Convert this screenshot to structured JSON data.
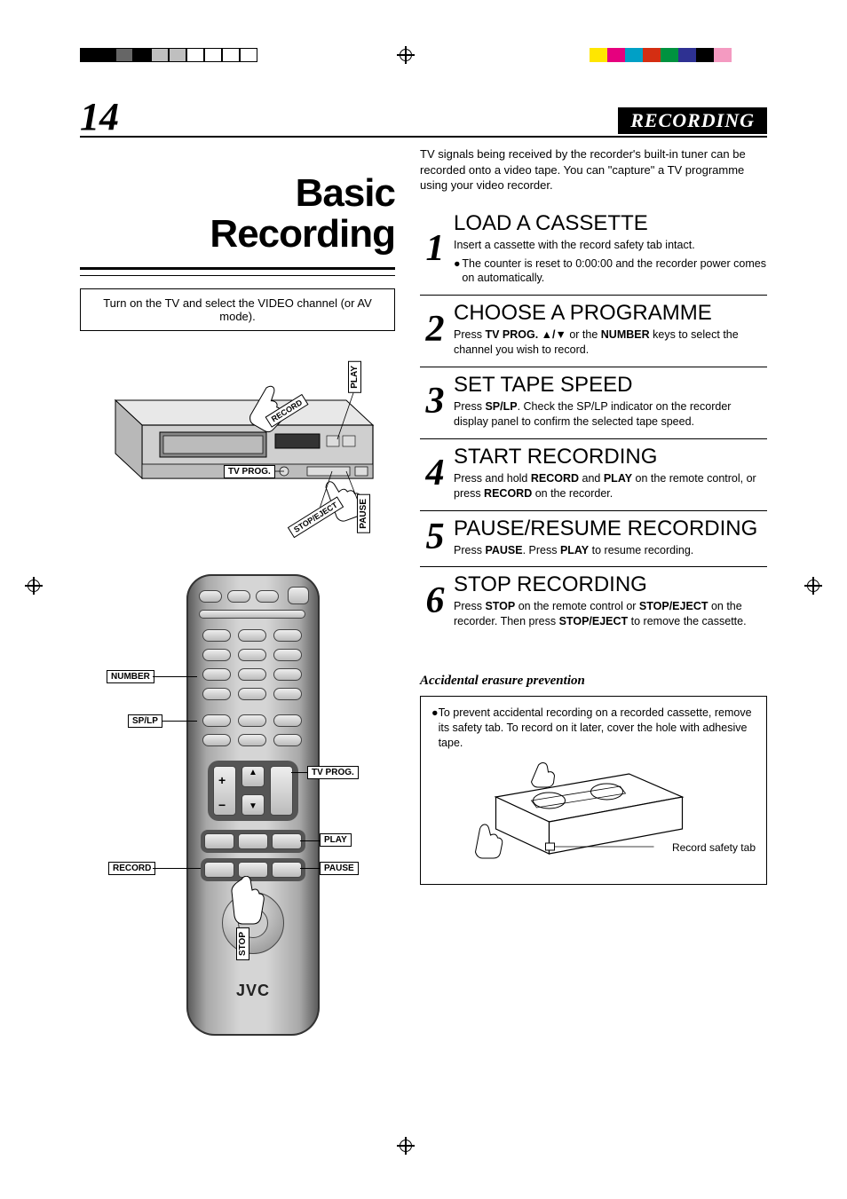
{
  "page_number": "14",
  "section_tab": "RECORDING",
  "title_line1": "Basic",
  "title_line2": "Recording",
  "tip_text": "Turn on the TV and select the VIDEO channel (or AV mode).",
  "vcr_labels": {
    "play": "PLAY",
    "record": "RECORD",
    "tv_prog": "TV PROG.",
    "stop_eject": "STOP/EJECT",
    "pause": "PAUSE"
  },
  "remote_labels": {
    "number": "NUMBER",
    "splp": "SP/LP",
    "tv_prog": "TV PROG.",
    "play": "PLAY",
    "pause": "PAUSE",
    "record": "RECORD",
    "stop": "STOP"
  },
  "remote_brand": "JVC",
  "intro": "TV signals being received by the recorder's built-in tuner can be recorded onto a video tape. You can \"capture\" a TV programme using your video recorder.",
  "steps": [
    {
      "num": "1",
      "title": "LOAD A CASSETTE",
      "body_html": "Insert a cassette with the record safety tab intact.",
      "bullet": "The counter is reset to 0:00:00 and the recorder power comes on automatically."
    },
    {
      "num": "2",
      "title": "CHOOSE A PROGRAMME",
      "body_html": "Press <b>TV PROG. ▲/▼</b> or the <b>NUMBER</b> keys to select the channel you wish to record."
    },
    {
      "num": "3",
      "title": "SET TAPE SPEED",
      "body_html": "Press <b>SP/LP</b>. Check the SP/LP indicator on the recorder display panel to confirm the selected tape speed."
    },
    {
      "num": "4",
      "title": "START RECORDING",
      "body_html": "Press and hold <b>RECORD</b> and <b>PLAY</b> on the remote control, or press <b>RECORD</b> on the recorder."
    },
    {
      "num": "5",
      "title": "PAUSE/RESUME RECORDING",
      "body_html": "Press <b>PAUSE</b>. Press <b>PLAY</b> to resume recording."
    },
    {
      "num": "6",
      "title": "STOP RECORDING",
      "body_html": "Press <b>STOP</b> on the remote control or <b>STOP/EJECT</b> on the recorder. Then press <b>STOP/EJECT</b> to remove the cassette."
    }
  ],
  "erasure_head": "Accidental erasure prevention",
  "erasure_body": "To prevent accidental recording on a recorded cassette, remove its safety tab. To record on it later, cover the hole with adhesive tape.",
  "erasure_label": "Record safety tab",
  "reg_colors_bw": [
    "#000000",
    "#000000",
    "#666666",
    "#000000",
    "#bfbfbf",
    "#bfbfbf",
    "#ffffff",
    "#ffffff",
    "#ffffff",
    "#ffffff"
  ],
  "reg_colors_c": [
    "#ffe600",
    "#e6007e",
    "#00a0c6",
    "#d42e12",
    "#00923f",
    "#2e3192",
    "#000000",
    "#f49ac1",
    "#ffffff"
  ]
}
